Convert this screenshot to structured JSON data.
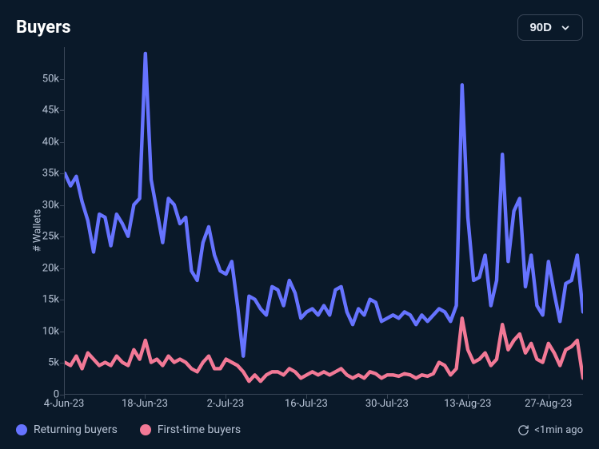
{
  "title": "Buyers",
  "range_selector": {
    "label": "90D"
  },
  "ylabel": "# Wallets",
  "updated": {
    "label": "<1min ago"
  },
  "styling": {
    "background_color": "#0a1929",
    "text_color": "#e8edf5",
    "axis_color": "#3a4758",
    "tick_label_color": "#b8c4d6",
    "title_fontsize": 22,
    "tick_fontsize": 13
  },
  "chart": {
    "type": "line",
    "ylim": [
      0,
      55000
    ],
    "yticks": [
      0,
      5000,
      10000,
      15000,
      20000,
      25000,
      30000,
      35000,
      40000,
      45000,
      50000
    ],
    "ytick_labels": [
      "0",
      "5k",
      "10k",
      "15k",
      "20k",
      "25k",
      "30k",
      "35k",
      "40k",
      "45k",
      "50k"
    ],
    "x_count": 91,
    "xtick_indices": [
      0,
      14,
      28,
      42,
      56,
      70,
      84
    ],
    "xtick_labels": [
      "4-Jun-23",
      "18-Jun-23",
      "2-Jul-23",
      "16-Jul-23",
      "30-Jul-23",
      "13-Aug-23",
      "27-Aug-23"
    ],
    "series": [
      {
        "id": "returning",
        "label": "Returning buyers",
        "color": "#6673ff",
        "line_width": 2,
        "values": [
          35000,
          33000,
          34500,
          30500,
          27500,
          22500,
          28500,
          28000,
          23500,
          28500,
          27000,
          25000,
          30000,
          31000,
          54000,
          34000,
          29000,
          24000,
          31000,
          30000,
          27000,
          28000,
          19500,
          18000,
          24000,
          26500,
          22000,
          19500,
          19000,
          21000,
          14000,
          6000,
          15500,
          15000,
          13500,
          12500,
          17000,
          16500,
          14000,
          18000,
          16000,
          12000,
          13000,
          13500,
          12500,
          14000,
          12500,
          16500,
          17000,
          13000,
          11000,
          13500,
          12500,
          15000,
          14500,
          11500,
          12000,
          12500,
          12000,
          13000,
          12500,
          11000,
          12500,
          11500,
          12500,
          13500,
          13000,
          11500,
          14000,
          49000,
          28000,
          18000,
          18500,
          22000,
          14000,
          18000,
          38000,
          21000,
          29000,
          31000,
          17000,
          22000,
          14000,
          12500,
          21000,
          16000,
          11500,
          17500,
          18000,
          22000,
          13000
        ]
      },
      {
        "id": "firsttime",
        "label": "First-time buyers",
        "color": "#f27996",
        "line_width": 2,
        "values": [
          5000,
          4500,
          6000,
          4000,
          6500,
          5500,
          4500,
          5000,
          4500,
          6000,
          5000,
          4500,
          7000,
          5500,
          8500,
          5000,
          5500,
          4500,
          6000,
          5000,
          5500,
          5000,
          4000,
          3500,
          5000,
          6000,
          4000,
          4000,
          5500,
          5000,
          4500,
          3500,
          2000,
          3000,
          2000,
          3000,
          3500,
          3500,
          3000,
          4000,
          3500,
          2500,
          3000,
          3500,
          3000,
          3500,
          3000,
          3500,
          4000,
          3000,
          2500,
          3000,
          2500,
          3500,
          3200,
          2500,
          3000,
          3000,
          2800,
          3200,
          3000,
          2500,
          3000,
          2800,
          3200,
          5000,
          4500,
          3000,
          4000,
          12000,
          7000,
          5000,
          5500,
          6500,
          4500,
          5500,
          11000,
          7000,
          8500,
          9500,
          6500,
          8000,
          5500,
          5000,
          8000,
          6500,
          4500,
          7000,
          7500,
          8500,
          2500
        ]
      }
    ]
  }
}
